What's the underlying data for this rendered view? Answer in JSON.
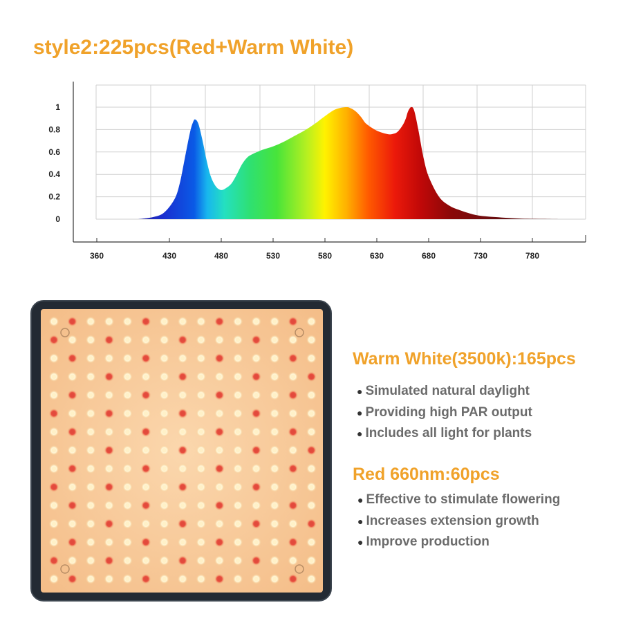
{
  "title": "style2:225pcs(Red+Warm White)",
  "chart_data": {
    "type": "area",
    "title": "style2:225pcs(Red+Warm White)",
    "xlabel": "",
    "ylabel": "",
    "x_ticks": [
      360,
      430,
      480,
      530,
      580,
      630,
      680,
      730,
      780
    ],
    "y_ticks": [
      "0",
      "0.2",
      "0.4",
      "0.6",
      "0.8",
      "1"
    ],
    "xlim": [
      360,
      810
    ],
    "ylim": [
      0,
      1
    ],
    "grid": true,
    "gradient": "visible spectrum",
    "x": [
      400,
      415,
      425,
      435,
      440,
      445,
      450,
      453,
      455,
      458,
      462,
      466,
      470,
      475,
      480,
      485,
      490,
      495,
      500,
      505,
      510,
      520,
      530,
      540,
      550,
      560,
      570,
      580,
      590,
      600,
      605,
      610,
      615,
      620,
      630,
      640,
      645,
      650,
      655,
      658,
      660,
      663,
      666,
      670,
      675,
      680,
      690,
      700,
      710,
      720,
      730,
      750,
      770,
      790,
      805
    ],
    "y": [
      0,
      0.02,
      0.06,
      0.18,
      0.32,
      0.55,
      0.78,
      0.87,
      0.89,
      0.85,
      0.7,
      0.52,
      0.38,
      0.29,
      0.26,
      0.28,
      0.32,
      0.4,
      0.49,
      0.55,
      0.58,
      0.62,
      0.65,
      0.69,
      0.74,
      0.79,
      0.85,
      0.92,
      0.98,
      1.0,
      0.99,
      0.96,
      0.91,
      0.85,
      0.79,
      0.76,
      0.76,
      0.78,
      0.84,
      0.9,
      0.96,
      1.0,
      0.97,
      0.8,
      0.55,
      0.38,
      0.2,
      0.12,
      0.08,
      0.05,
      0.03,
      0.015,
      0.005,
      0.002,
      0
    ]
  },
  "panel": {
    "label": "LED grow light panel",
    "rows": 15,
    "cols": 15,
    "warm_white_color": "#fff1c8",
    "red_color": "#e24a3c",
    "board_color": "#f7c79a",
    "frame_color": "#222a33"
  },
  "warm_white": {
    "heading": "Warm White(3500k):165pcs",
    "bullets": [
      "Simulated natural daylight",
      "Providing high PAR output",
      "Includes all light for plants"
    ]
  },
  "red": {
    "heading": "Red 660nm:60pcs",
    "bullets": [
      "Effective to stimulate flowering",
      "Increases extension growth",
      "Improve production"
    ]
  },
  "colors": {
    "accent": "#f0a22a",
    "bullet_text": "#6b6b6b"
  }
}
